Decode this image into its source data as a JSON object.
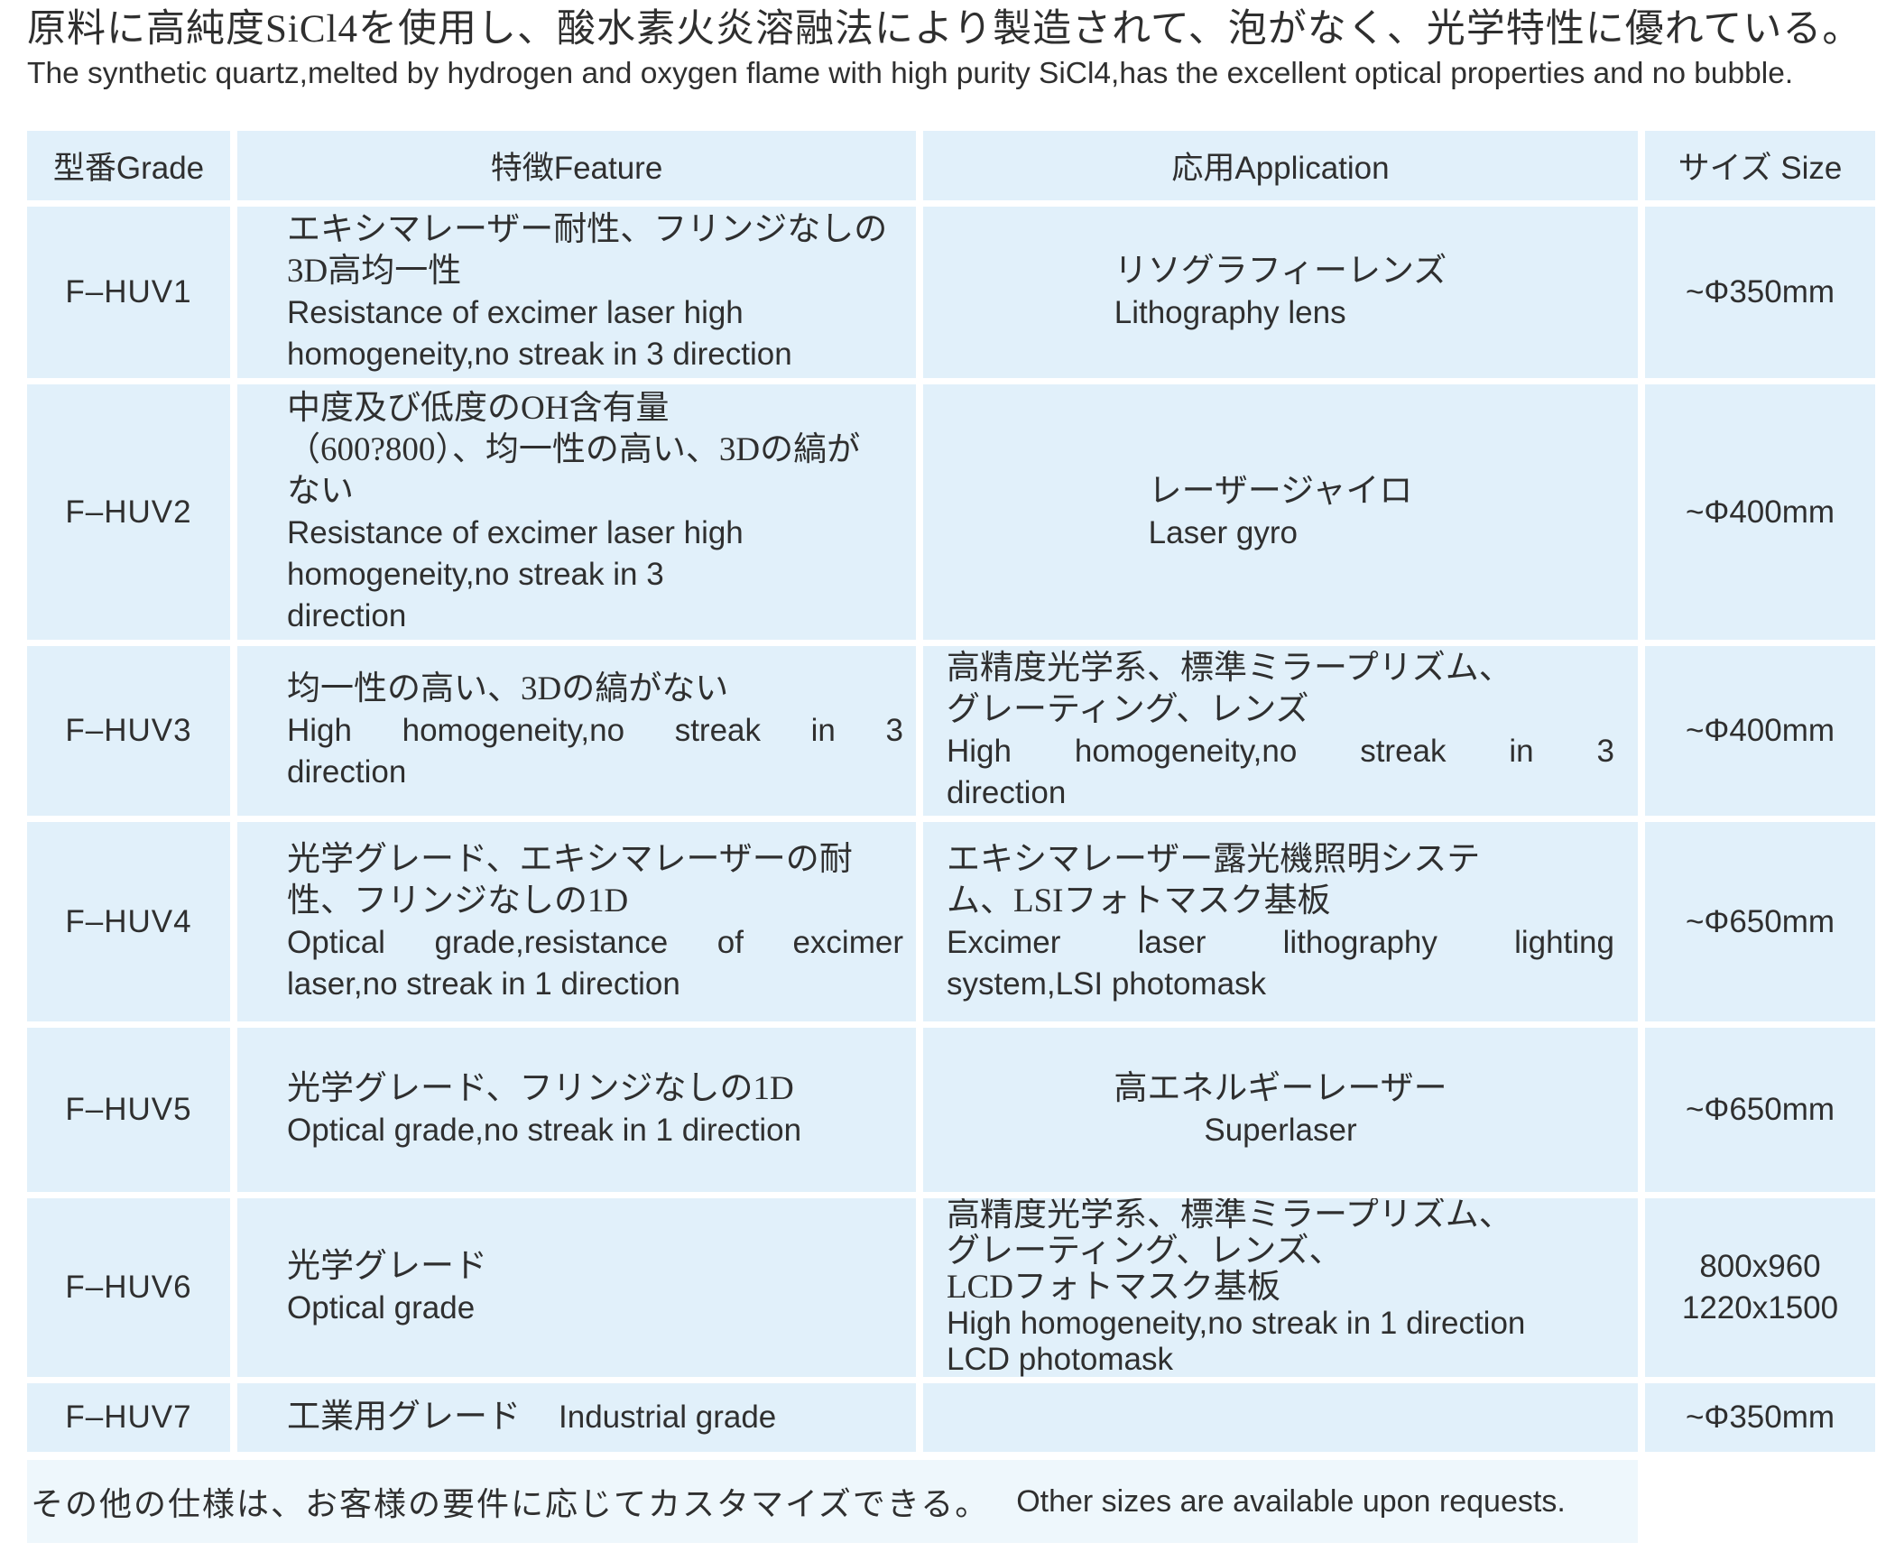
{
  "intro": {
    "jp": "原料に高純度SiCl4を使用し、酸水素火炎溶融法により製造されて、泡がなく、光学特性に優れている。",
    "en": "The synthetic quartz,melted by hydrogen and oxygen flame with high purity SiCl4,has the excellent optical properties and no bubble."
  },
  "table": {
    "headers": {
      "grade": "型番Grade",
      "feature": "特徴Feature",
      "application": "応用Application",
      "size": "サイズ Size"
    },
    "rows": [
      {
        "grade": "F–HUV1",
        "feature": [
          "エキシマレーザー耐性、フリンジなしの",
          "3D高均一性",
          "Resistance of excimer laser high",
          "homogeneity,no streak in 3 direction"
        ],
        "application": [
          "リソグラフィーレンズ",
          "Lithography lens"
        ],
        "size": "~Φ350mm"
      },
      {
        "grade": "F–HUV2",
        "feature": [
          "中度及び低度のOH含有量",
          "（600?800）、均一性の高い、3Dの縞が",
          "ない",
          "Resistance of excimer laser high",
          "homogeneity,no streak in 3",
          "direction"
        ],
        "application": [
          "レーザージャイロ",
          "Laser gyro"
        ],
        "size": "~Φ400mm"
      },
      {
        "grade": "F–HUV3",
        "feature": [
          "均一性の高い、3Dの縞がない",
          "High homogeneity,no streak in 3",
          "direction"
        ],
        "application": [
          "高精度光学系、標準ミラープリズム、",
          "グレーティング、レンズ",
          "High homogeneity,no streak in 3",
          "direction"
        ],
        "size": "~Φ400mm"
      },
      {
        "grade": "F–HUV4",
        "feature": [
          "光学グレード、エキシマレーザーの耐",
          "性、フリンジなしの1D",
          "Optical grade,resistance of excimer",
          "laser,no streak in 1 direction"
        ],
        "application": [
          "エキシマレーザー露光機照明システ",
          "ム、LSIフォトマスク基板",
          "Excimer laser lithography lighting",
          "system,LSI photomask"
        ],
        "size": "~Φ650mm"
      },
      {
        "grade": "F–HUV5",
        "feature": [
          "光学グレード、フリンジなしの1D",
          "Optical grade,no streak in 1 direction"
        ],
        "application": [
          "高エネルギーレーザー",
          "Superlaser"
        ],
        "size": "~Φ650mm"
      },
      {
        "grade": "F–HUV6",
        "feature": [
          "光学グレード",
          "Optical grade"
        ],
        "application": [
          "高精度光学系、標準ミラープリズム、",
          "グレーティング、レンズ、",
          "LCDフォトマスク基板",
          "High homogeneity,no streak in 1 direction",
          "LCD photomask"
        ],
        "size": [
          "800x960",
          "1220x1500"
        ]
      },
      {
        "grade": "F–HUV7",
        "feature_jp": "工業用グレード",
        "feature_en": "Industrial grade",
        "application": [],
        "size": "~Φ350mm"
      }
    ]
  },
  "footer": {
    "jp": "その他の仕様は、お客様の要件に応じてカスタマイズできる。",
    "en": "Other sizes are available upon requests."
  },
  "colors": {
    "cell_bg": "#e1f0fa",
    "footer_band_bg": "#eef7fc",
    "text": "#2f2f2f",
    "page_bg": "#ffffff"
  }
}
